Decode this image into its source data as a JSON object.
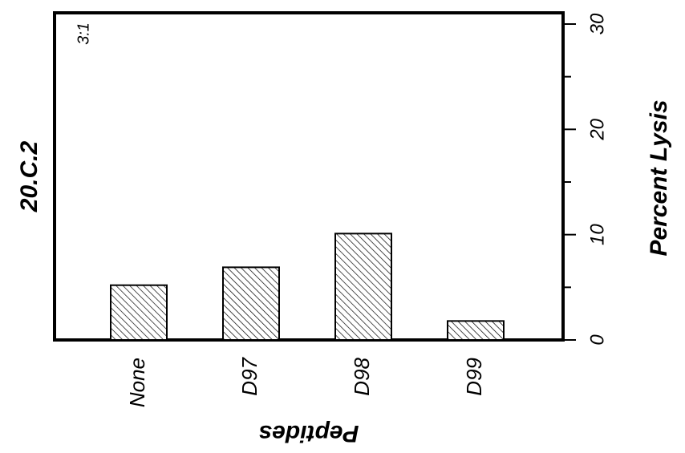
{
  "chart_data": {
    "type": "bar",
    "title": "20.C.2",
    "annotation": "3:1",
    "xlabel": "Peptides",
    "ylabel": "Percent Lysis",
    "categories": [
      "None",
      "D97",
      "D98",
      "D99"
    ],
    "series": [
      {
        "values": [
          5.2,
          6.9,
          10.1,
          1.8
        ]
      }
    ],
    "ylim": [
      0,
      30
    ],
    "yticks": [
      0,
      10,
      20,
      30
    ],
    "y_axis_side": "right",
    "grid": false,
    "bar_fill": "diagonal-hatch",
    "colors": {
      "stroke": "#000000",
      "background": "#ffffff"
    }
  }
}
